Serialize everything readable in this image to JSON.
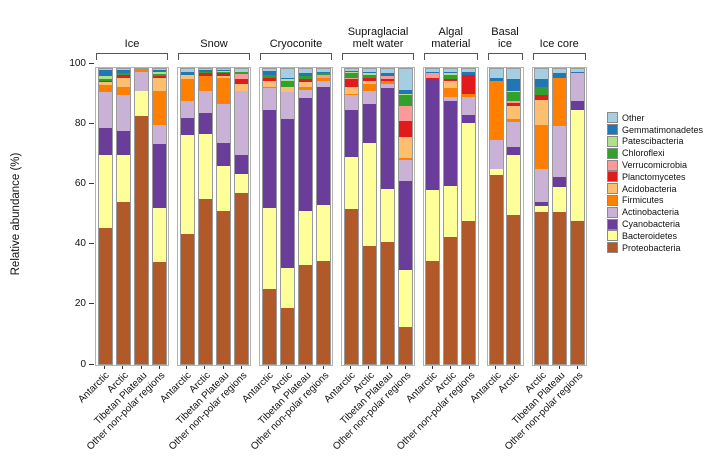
{
  "chart_data": {
    "type": "bar",
    "variant": "stacked-percent",
    "title": "",
    "xlabel": "",
    "ylabel": "Relative abundance (%)",
    "ylim": [
      0,
      100
    ],
    "yticks": [
      0,
      20,
      40,
      60,
      80,
      100
    ],
    "grid": false,
    "legend_position": "right",
    "legend_order_top_to_bottom": [
      "Other",
      "Gemmatimonadetes",
      "Patescibacteria",
      "Chloroflexi",
      "Verrucomicrobia",
      "Planctomycetes",
      "Acidobacteria",
      "Firmicutes",
      "Actinobacteria",
      "Cyanobacteria",
      "Bacteroidetes",
      "Proteobacteria"
    ],
    "stack_order_bottom_to_top": [
      "Proteobacteria",
      "Bacteroidetes",
      "Cyanobacteria",
      "Actinobacteria",
      "Firmicutes",
      "Acidobacteria",
      "Planctomycetes",
      "Verrucomicrobia",
      "Chloroflexi",
      "Patescibacteria",
      "Gemmatimonadetes",
      "Other"
    ],
    "colors": {
      "Proteobacteria": "#B15928",
      "Bacteroidetes": "#FFFF99",
      "Cyanobacteria": "#6A3D9A",
      "Actinobacteria": "#CAB2D6",
      "Firmicutes": "#FF7F00",
      "Acidobacteria": "#FDBF6F",
      "Planctomycetes": "#E31A1C",
      "Verrucomicrobia": "#FB9A99",
      "Chloroflexi": "#33A02C",
      "Patescibacteria": "#B2DF8A",
      "Gemmatimonadetes": "#1F78B4",
      "Other": "#A6CEE3"
    },
    "groups": [
      {
        "label": "Ice",
        "bars": [
          {
            "region": "Antarctic",
            "values": {
              "Proteobacteria": 46,
              "Bacteroidetes": 25,
              "Cyanobacteria": 9,
              "Actinobacteria": 12,
              "Firmicutes": 2.5,
              "Acidobacteria": 1,
              "Planctomycetes": 0.5,
              "Chloroflexi": 0.7,
              "Patescibacteria": 0.8,
              "Gemmatimonadetes": 2,
              "Other": 0.5
            }
          },
          {
            "region": "Arctic",
            "values": {
              "Proteobacteria": 55,
              "Bacteroidetes": 16,
              "Cyanobacteria": 8,
              "Actinobacteria": 12,
              "Firmicutes": 3,
              "Acidobacteria": 3,
              "Planctomycetes": 1,
              "Chloroflexi": 0.5,
              "Gemmatimonadetes": 1,
              "Other": 0.5
            }
          },
          {
            "region": "Tibetan Plateau",
            "values": {
              "Proteobacteria": 84,
              "Bacteroidetes": 8.5,
              "Actinobacteria": 6.5,
              "Firmicutes": 1
            }
          },
          {
            "region": "Other non-polar regions",
            "values": {
              "Proteobacteria": 34.5,
              "Bacteroidetes": 18.5,
              "Cyanobacteria": 21.5,
              "Actinobacteria": 6.5,
              "Firmicutes": 11.5,
              "Acidobacteria": 4.5,
              "Planctomycetes": 0.5,
              "Chloroflexi": 0.8,
              "Patescibacteria": 0.7,
              "Gemmatimonadetes": 0.5,
              "Other": 0.5
            }
          }
        ]
      },
      {
        "label": "Snow",
        "bars": [
          {
            "region": "Antarctic",
            "values": {
              "Proteobacteria": 44,
              "Bacteroidetes": 33.5,
              "Cyanobacteria": 6,
              "Actinobacteria": 5.5,
              "Firmicutes": 7.5,
              "Acidobacteria": 1.5,
              "Gemmatimonadetes": 1,
              "Other": 1
            }
          },
          {
            "region": "Arctic",
            "values": {
              "Proteobacteria": 56,
              "Bacteroidetes": 22,
              "Cyanobacteria": 7,
              "Actinobacteria": 7.5,
              "Firmicutes": 5,
              "Planctomycetes": 1,
              "Chloroflexi": 0.5,
              "Gemmatimonadetes": 0.5,
              "Other": 0.5
            }
          },
          {
            "region": "Tibetan Plateau",
            "values": {
              "Proteobacteria": 52,
              "Bacteroidetes": 15,
              "Cyanobacteria": 8,
              "Actinobacteria": 13,
              "Firmicutes": 9,
              "Acidobacteria": 0.5,
              "Planctomycetes": 1,
              "Chloroflexi": 0.5,
              "Patescibacteria": 0.3,
              "Gemmatimonadetes": 0.4,
              "Other": 0.3
            }
          },
          {
            "region": "Other non-polar regions",
            "values": {
              "Proteobacteria": 58,
              "Bacteroidetes": 6.5,
              "Cyanobacteria": 6.5,
              "Actinobacteria": 21.5,
              "Acidobacteria": 2.5,
              "Planctomycetes": 1.5,
              "Verrucomicrobia": 1.8,
              "Chloroflexi": 0.7,
              "Other": 1
            }
          }
        ]
      },
      {
        "label": "Cryoconite",
        "bars": [
          {
            "region": "Antarctic",
            "values": {
              "Proteobacteria": 25.5,
              "Bacteroidetes": 27.5,
              "Cyanobacteria": 33,
              "Actinobacteria": 7.5,
              "Firmicutes": 0.5,
              "Acidobacteria": 2,
              "Planctomycetes": 0.8,
              "Chloroflexi": 1,
              "Gemmatimonadetes": 1.4,
              "Other": 0.8
            }
          },
          {
            "region": "Arctic",
            "values": {
              "Proteobacteria": 19,
              "Bacteroidetes": 13.5,
              "Cyanobacteria": 50.5,
              "Actinobacteria": 9,
              "Acidobacteria": 2,
              "Chloroflexi": 1.8,
              "Patescibacteria": 0.7,
              "Gemmatimonadetes": 0.5,
              "Other": 3
            }
          },
          {
            "region": "Tibetan Plateau",
            "values": {
              "Proteobacteria": 33.5,
              "Bacteroidetes": 18.5,
              "Cyanobacteria": 38,
              "Actinobacteria": 2.8,
              "Firmicutes": 1,
              "Acidobacteria": 1.7,
              "Planctomycetes": 1.2,
              "Chloroflexi": 0.8,
              "Gemmatimonadetes": 1,
              "Other": 1.5
            }
          },
          {
            "region": "Other non-polar regions",
            "values": {
              "Proteobacteria": 35,
              "Bacteroidetes": 19,
              "Cyanobacteria": 40,
              "Actinobacteria": 2,
              "Firmicutes": 1,
              "Verrucomicrobia": 1,
              "Chloroflexi": 0.5,
              "Gemmatimonadetes": 0.5,
              "Other": 1
            }
          }
        ]
      },
      {
        "label": "Supraglacial melt water",
        "bars": [
          {
            "region": "Antarctic",
            "values": {
              "Proteobacteria": 52.5,
              "Bacteroidetes": 17.5,
              "Cyanobacteria": 16,
              "Actinobacteria": 5,
              "Firmicutes": 0.5,
              "Acidobacteria": 2.5,
              "Planctomycetes": 2.5,
              "Verrucomicrobia": 0.5,
              "Chloroflexi": 1.5,
              "Patescibacteria": 0.3,
              "Gemmatimonadetes": 0.5,
              "Other": 0.7
            }
          },
          {
            "region": "Arctic",
            "values": {
              "Proteobacteria": 40,
              "Bacteroidetes": 35,
              "Cyanobacteria": 13,
              "Actinobacteria": 4.5,
              "Firmicutes": 2.5,
              "Acidobacteria": 1,
              "Planctomycetes": 1,
              "Chloroflexi": 1,
              "Patescibacteria": 0.5,
              "Gemmatimonadetes": 0.5,
              "Other": 1
            }
          },
          {
            "region": "Tibetan Plateau",
            "values": {
              "Proteobacteria": 41.5,
              "Bacteroidetes": 18,
              "Cyanobacteria": 34,
              "Actinobacteria": 1.5,
              "Firmicutes": 1,
              "Planctomycetes": 0.5,
              "Verrucomicrobia": 1,
              "Gemmatimonadetes": 1,
              "Other": 1.5
            }
          },
          {
            "region": "Other non-polar regions",
            "values": {
              "Proteobacteria": 12.5,
              "Bacteroidetes": 19.5,
              "Cyanobacteria": 30,
              "Actinobacteria": 7,
              "Firmicutes": 1,
              "Acidobacteria": 7,
              "Planctomycetes": 5.5,
              "Verrucomicrobia": 5,
              "Chloroflexi": 3.5,
              "Patescibacteria": 0.5,
              "Gemmatimonadetes": 1.5,
              "Other": 7
            }
          }
        ]
      },
      {
        "label": "Algal material",
        "bars": [
          {
            "region": "Antarctic",
            "values": {
              "Proteobacteria": 35,
              "Bacteroidetes": 24,
              "Cyanobacteria": 37.5,
              "Planctomycetes": 0.5,
              "Verrucomicrobia": 1.5,
              "Gemmatimonadetes": 0.5,
              "Other": 1
            }
          },
          {
            "region": "Arctic",
            "values": {
              "Proteobacteria": 43,
              "Bacteroidetes": 17.5,
              "Cyanobacteria": 28.5,
              "Actinobacteria": 1.5,
              "Firmicutes": 3,
              "Acidobacteria": 2.5,
              "Planctomycetes": 0.5,
              "Chloroflexi": 1.5,
              "Patescibacteria": 0.5,
              "Gemmatimonadetes": 0.5,
              "Other": 1
            }
          },
          {
            "region": "Other non-polar regions",
            "values": {
              "Proteobacteria": 48.5,
              "Bacteroidetes": 33,
              "Cyanobacteria": 3,
              "Actinobacteria": 6,
              "Firmicutes": 1,
              "Planctomycetes": 6.5,
              "Gemmatimonadetes": 1,
              "Other": 1
            }
          }
        ]
      },
      {
        "label": "Basal ice",
        "bars": [
          {
            "region": "Antarctic",
            "values": {
              "Proteobacteria": 64,
              "Bacteroidetes": 2,
              "Actinobacteria": 10,
              "Firmicutes": 20,
              "Gemmatimonadetes": 1,
              "Other": 3
            }
          },
          {
            "region": "Arctic",
            "values": {
              "Proteobacteria": 50.5,
              "Bacteroidetes": 20.5,
              "Cyanobacteria": 2.5,
              "Actinobacteria": 8.5,
              "Firmicutes": 1,
              "Acidobacteria": 4.5,
              "Planctomycetes": 1,
              "Verrucomicrobia": 0.5,
              "Chloroflexi": 3,
              "Patescibacteria": 0.5,
              "Gemmatimonadetes": 4,
              "Other": 3.5
            }
          }
        ]
      },
      {
        "label": "Ice core",
        "bars": [
          {
            "region": "Arctic",
            "values": {
              "Proteobacteria": 51.5,
              "Bacteroidetes": 2,
              "Cyanobacteria": 1.5,
              "Actinobacteria": 11,
              "Firmicutes": 15,
              "Acidobacteria": 8.5,
              "Planctomycetes": 1.5,
              "Chloroflexi": 3,
              "Gemmatimonadetes": 2.5,
              "Other": 3.5
            }
          },
          {
            "region": "Tibetan Plateau",
            "values": {
              "Proteobacteria": 51.5,
              "Bacteroidetes": 8.5,
              "Cyanobacteria": 3.5,
              "Actinobacteria": 17,
              "Firmicutes": 16.5,
              "Gemmatimonadetes": 1.5,
              "Other": 1.5
            }
          },
          {
            "region": "Other non-polar regions",
            "values": {
              "Proteobacteria": 48.5,
              "Bacteroidetes": 37.5,
              "Cyanobacteria": 3,
              "Actinobacteria": 9.5,
              "Gemmatimonadetes": 0.5,
              "Other": 1
            }
          }
        ]
      }
    ]
  }
}
